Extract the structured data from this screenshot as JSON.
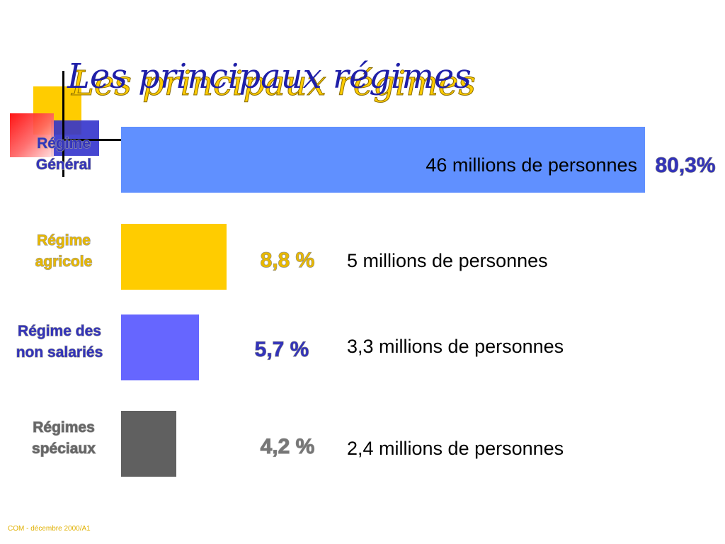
{
  "title": "Les principaux régimes",
  "footer": "COM - décembre 2000/A1",
  "colors": {
    "title": "#1f1fa8",
    "title_shadow": "#ffcc00",
    "label": "#3333bb",
    "footer": "#e0b000"
  },
  "chart_data": {
    "type": "bar",
    "orientation": "horizontal",
    "unit": "%",
    "grid": false,
    "categories": [
      [
        "Régime",
        "Général"
      ],
      [
        "Régime",
        "agricole"
      ],
      [
        "Régime des",
        "non salariés"
      ],
      [
        "Régimes",
        "spéciaux"
      ]
    ],
    "values": [
      80.3,
      8.8,
      5.7,
      4.2
    ],
    "value_labels": [
      "80,3%",
      "8,8 %",
      "5,7 %",
      "4,2 %"
    ],
    "descriptions": [
      "46  millions de personnes",
      "5 millions de personnes",
      "3,3 millions de personnes",
      "2,4 millions de personnes"
    ],
    "bar_colors": [
      "#6090ff",
      "#ffcc00",
      "#6666ff",
      "#606060"
    ],
    "label_colors": [
      "#3333bb",
      "#e8b800",
      "#3333bb",
      "#666666"
    ],
    "value_label_colors": [
      "#3333bb",
      "#e8b800",
      "#3333bb",
      "#777777"
    ]
  }
}
